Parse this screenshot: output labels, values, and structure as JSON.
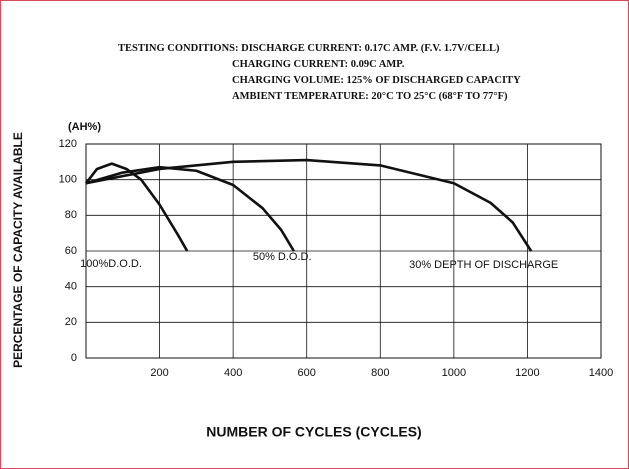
{
  "chart_data": {
    "type": "line",
    "conditions": [
      "TESTING CONDITIONS: DISCHARGE CURRENT: 0.17C AMP. (F.V. 1.7V/CELL)",
      "CHARGING CURRENT: 0.09C AMP.",
      "CHARGING VOLUME: 125% OF DISCHARGED CAPACITY",
      "AMBIENT TEMPERATURE: 20°C TO 25°C (68°F TO 77°F)"
    ],
    "y_unit": "(AH%)",
    "y_label": "PERCENTAGE OF CAPACITY AVAILABLE",
    "x_label": "NUMBER OF CYCLES (CYCLES)",
    "xlim": [
      0,
      1400
    ],
    "xticks": [
      200,
      400,
      600,
      800,
      1000,
      1200,
      1400
    ],
    "ylim": [
      0,
      120
    ],
    "yticks": [
      0,
      20,
      40,
      60,
      80,
      100,
      120
    ],
    "grid": true,
    "series": [
      {
        "name": "100%D.O.D.",
        "color": "#111111",
        "x": [
          0,
          30,
          70,
          110,
          150,
          200,
          250,
          275
        ],
        "values": [
          98,
          106,
          109,
          106,
          100,
          86,
          69,
          60
        ]
      },
      {
        "name": "50% D.O.D.",
        "color": "#111111",
        "x": [
          0,
          100,
          200,
          300,
          400,
          480,
          530,
          565
        ],
        "values": [
          98,
          104,
          107,
          105,
          97,
          84,
          72,
          60
        ]
      },
      {
        "name": "30% DEPTH OF DISCHARGE",
        "color": "#111111",
        "x": [
          0,
          200,
          400,
          600,
          800,
          1000,
          1100,
          1160,
          1210
        ],
        "values": [
          98,
          106,
          110,
          111,
          108,
          98,
          87,
          76,
          60
        ]
      }
    ]
  }
}
